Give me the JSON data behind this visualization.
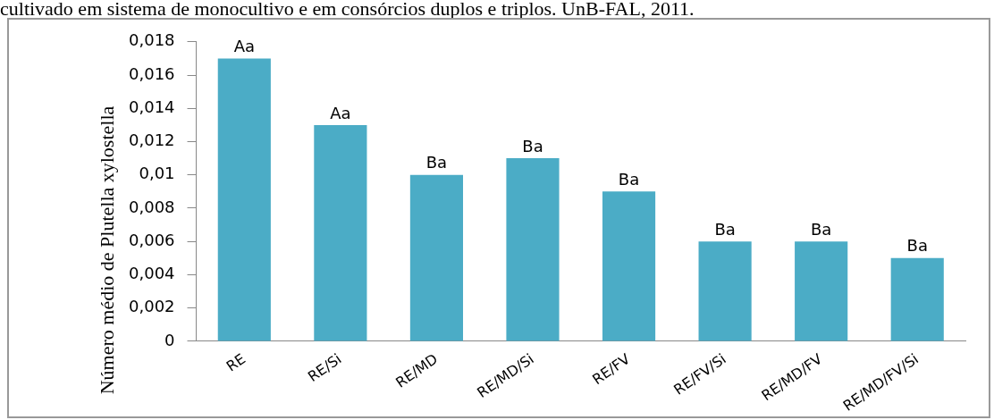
{
  "chart_data": {
    "type": "bar",
    "title": "cultivado em sistema de  monocultivo e em consórcios duplos e triplos. UnB-FAL, 2011.",
    "ylabel": "Número médio de Plutella xylostella",
    "categories": [
      "RE",
      "RE/Si",
      "RE/MD",
      "RE/MD/Si",
      "RE/FV",
      "RE/FV/Si",
      "RE/MD/FV",
      "RE/MD/FV/Si"
    ],
    "values": [
      0.017,
      0.013,
      0.01,
      0.011,
      0.009,
      0.006,
      0.006,
      0.005
    ],
    "color": "#4bacc6",
    "ylim": [
      0,
      0.018
    ],
    "yticks": [
      0,
      {
        "value": 0.002,
        "label": "0,002"
      },
      {
        "value": 0.004,
        "label": "0,004"
      },
      {
        "value": 0.006,
        "label": "0,006"
      },
      {
        "value": 0.008,
        "label": "0,008"
      },
      {
        "value": 0.01,
        "label": "0,01"
      },
      {
        "value": 0.012,
        "label": "0,012"
      },
      {
        "value": 0.014,
        "label": "0,014"
      },
      {
        "value": 0.016,
        "label": "0,016"
      },
      {
        "value": 0.018,
        "label": "0,018"
      }
    ],
    "grid": false,
    "legend": false,
    "annotations": [
      {
        "text": "Aa",
        "x": "RE",
        "y": 0.017
      },
      {
        "text": "Aa",
        "x": "RE/Si",
        "y": 0.013
      },
      {
        "text": "Ba",
        "x": "RE/MD",
        "y": 0.01
      },
      {
        "text": "Ba",
        "x": "RE/MD/Si",
        "y": 0.011
      },
      {
        "text": "Ba",
        "x": "RE/FV",
        "y": 0.009
      },
      {
        "text": "Ba",
        "x": "RE/FV/Si",
        "y": 0.006
      },
      {
        "text": "Ba",
        "x": "RE/MD/FV",
        "y": 0.006
      },
      {
        "text": "Ba",
        "x": "RE/MD/FV/Si",
        "y": 0.005
      }
    ]
  }
}
